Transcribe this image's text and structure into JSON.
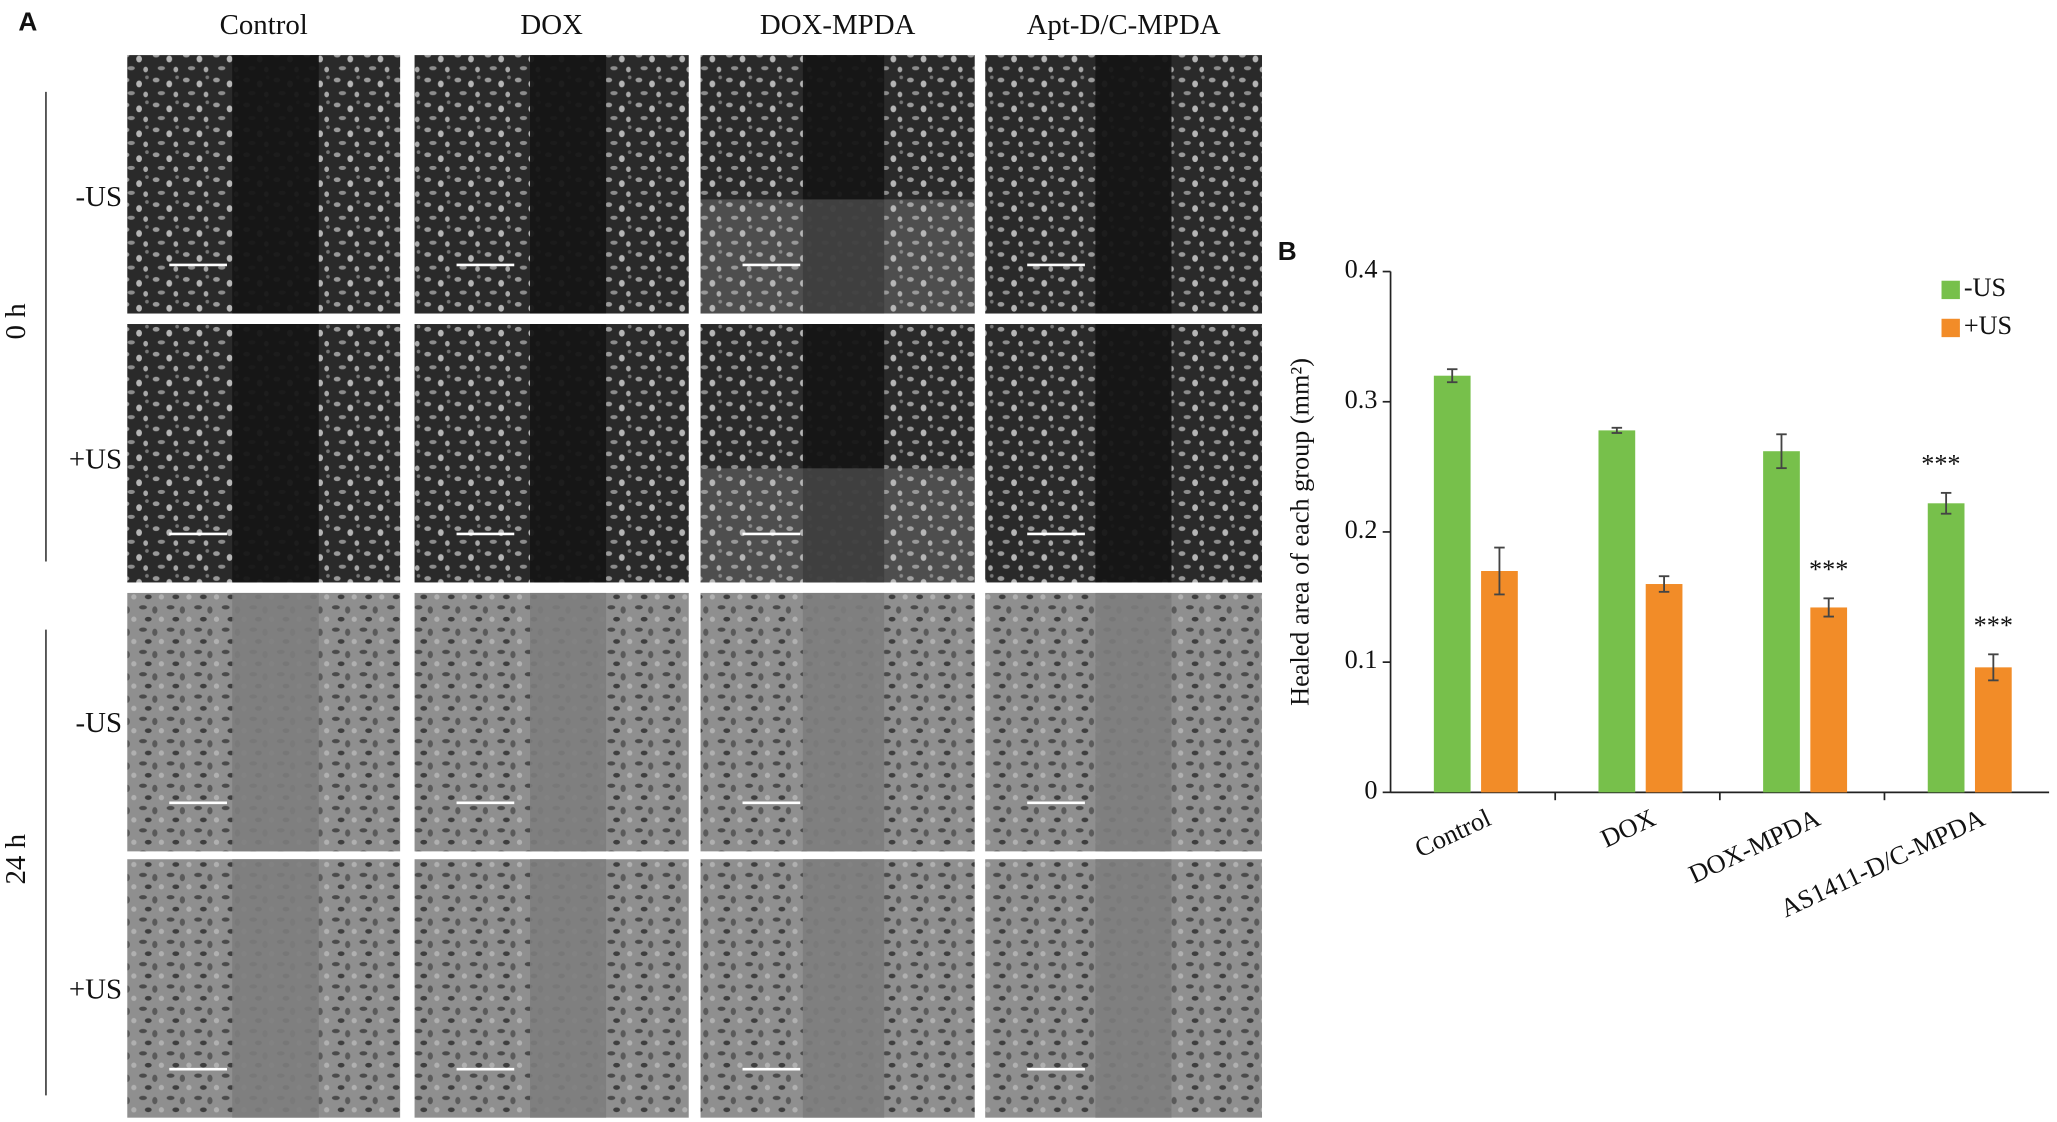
{
  "panel_a": {
    "letter": "A",
    "columns": [
      "Control",
      "DOX",
      "DOX-MPDA",
      "Apt-D/C-MPDA"
    ],
    "times": [
      "0 h",
      "24 h"
    ],
    "rows": [
      "-US",
      "+US",
      "-US",
      "+US"
    ]
  },
  "chart_data": {
    "type": "bar",
    "letter": "B",
    "y_label": "Healed area of each group (mm²)",
    "categories": [
      "Control",
      "DOX",
      "DOX-MPDA",
      "AS1411-D/C-MPDA"
    ],
    "series": [
      {
        "name": "-US",
        "color": "#77c04b",
        "values": [
          0.32,
          0.278,
          0.262,
          0.222
        ],
        "errors": [
          0.005,
          0.002,
          0.013,
          0.008
        ]
      },
      {
        "name": "+US",
        "color": "#f28c28",
        "values": [
          0.17,
          0.16,
          0.142,
          0.096
        ],
        "errors": [
          0.018,
          0.006,
          0.007,
          0.01
        ]
      }
    ],
    "annotations": [
      {
        "text": "***",
        "category": "DOX-MPDA",
        "series": "+US"
      },
      {
        "text": "***",
        "category": "AS1411-D/C-MPDA",
        "series": "-US"
      },
      {
        "text": "***",
        "category": "AS1411-D/C-MPDA",
        "series": "+US"
      }
    ],
    "ylim": [
      0,
      0.4
    ],
    "yticks": [
      0,
      0.1,
      0.2,
      0.3,
      0.4
    ],
    "grid": false,
    "legend": "top-right"
  }
}
